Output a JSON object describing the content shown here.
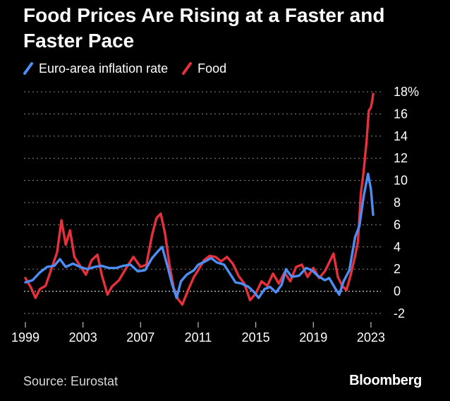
{
  "header": {
    "title": "Food Prices Are Rising at a Faster and Faster Pace"
  },
  "legend": {
    "items": [
      {
        "label": "Euro-area inflation rate",
        "color": "#4d8ef5"
      },
      {
        "label": "Food",
        "color": "#e8303a"
      }
    ]
  },
  "footer": {
    "source": "Source: Eurostat",
    "brand": "Bloomberg"
  },
  "chart_data": {
    "type": "line",
    "title": "Food Prices Are Rising at a Faster and Faster Pace",
    "xlabel": "",
    "ylabel": "",
    "xlim": [
      1998.9,
      2023.2
    ],
    "ylim": [
      -2,
      18
    ],
    "x_ticks": [
      1999,
      2003,
      2007,
      2011,
      2015,
      2019,
      2023
    ],
    "x_tick_labels": [
      "1999",
      "2003",
      "2007",
      "2011",
      "2015",
      "2019",
      "2023"
    ],
    "y_ticks": [
      -2,
      0,
      2,
      4,
      6,
      8,
      10,
      12,
      14,
      16,
      18
    ],
    "y_tick_labels": [
      "-2",
      "0",
      "2",
      "4",
      "6",
      "8",
      "10",
      "12",
      "14",
      "16",
      "18%"
    ],
    "grid": "horizontal dotted",
    "legend_position": "top-left",
    "series": [
      {
        "name": "Euro-area inflation rate",
        "color": "#4d8ef5",
        "x": [
          1999.0,
          1999.5,
          2000.0,
          2000.5,
          2001.0,
          2001.4,
          2001.8,
          2002.3,
          2002.8,
          2003.3,
          2003.8,
          2004.3,
          2004.8,
          2005.3,
          2005.8,
          2006.3,
          2006.8,
          2007.3,
          2007.8,
          2008.2,
          2008.5,
          2008.9,
          2009.2,
          2009.5,
          2009.8,
          2010.2,
          2010.7,
          2011.0,
          2011.5,
          2011.9,
          2012.3,
          2012.8,
          2013.2,
          2013.6,
          2014.0,
          2014.5,
          2014.9,
          2015.2,
          2015.6,
          2016.0,
          2016.4,
          2016.8,
          2017.1,
          2017.5,
          2018.0,
          2018.5,
          2018.9,
          2019.3,
          2019.8,
          2020.1,
          2020.5,
          2020.8,
          2021.1,
          2021.5,
          2021.9,
          2022.2,
          2022.5,
          2022.8,
          2023.0,
          2023.15
        ],
        "values": [
          0.8,
          1.0,
          1.7,
          2.2,
          2.3,
          2.9,
          2.2,
          2.5,
          2.2,
          2.0,
          2.2,
          2.3,
          2.1,
          2.1,
          2.3,
          2.4,
          1.8,
          1.9,
          3.0,
          3.6,
          4.0,
          2.1,
          0.6,
          -0.6,
          0.9,
          1.5,
          1.9,
          2.4,
          2.7,
          3.0,
          2.6,
          2.4,
          1.6,
          0.8,
          0.7,
          0.4,
          -0.1,
          -0.6,
          0.2,
          0.4,
          -0.1,
          0.6,
          2.0,
          1.3,
          1.4,
          2.1,
          1.9,
          1.4,
          1.0,
          1.2,
          0.3,
          -0.3,
          0.9,
          1.9,
          4.9,
          5.9,
          8.6,
          10.6,
          9.2,
          6.9
        ]
      },
      {
        "name": "Food",
        "color": "#e8303a",
        "x": [
          1999.0,
          1999.4,
          1999.7,
          2000.0,
          2000.4,
          2000.8,
          2001.2,
          2001.5,
          2001.8,
          2002.1,
          2002.4,
          2002.8,
          2003.2,
          2003.6,
          2004.0,
          2004.3,
          2004.7,
          2005.0,
          2005.5,
          2006.0,
          2006.5,
          2007.0,
          2007.4,
          2007.8,
          2008.1,
          2008.4,
          2008.7,
          2009.0,
          2009.3,
          2009.6,
          2009.9,
          2010.3,
          2010.7,
          2011.0,
          2011.4,
          2011.8,
          2012.2,
          2012.6,
          2013.0,
          2013.4,
          2013.8,
          2014.2,
          2014.6,
          2015.0,
          2015.4,
          2015.8,
          2016.2,
          2016.6,
          2017.0,
          2017.4,
          2017.8,
          2018.2,
          2018.6,
          2019.0,
          2019.4,
          2019.8,
          2020.1,
          2020.4,
          2020.7,
          2021.0,
          2021.3,
          2021.6,
          2021.9,
          2022.1,
          2022.3,
          2022.5,
          2022.7,
          2022.85,
          2023.0,
          2023.1,
          2023.15
        ],
        "values": [
          1.2,
          0.3,
          -0.6,
          0.2,
          0.5,
          2.0,
          3.5,
          6.4,
          4.2,
          5.5,
          3.1,
          2.3,
          1.5,
          2.8,
          3.3,
          1.5,
          -0.3,
          0.4,
          1.0,
          2.1,
          3.1,
          2.2,
          2.4,
          5.1,
          6.6,
          7.0,
          5.2,
          2.4,
          0.3,
          -0.7,
          -1.2,
          0.1,
          1.3,
          1.9,
          2.8,
          3.2,
          3.1,
          2.7,
          3.1,
          2.5,
          1.4,
          0.7,
          -0.8,
          -0.2,
          0.9,
          0.5,
          1.6,
          0.7,
          1.7,
          0.9,
          2.2,
          2.4,
          1.3,
          2.1,
          1.2,
          1.8,
          2.6,
          3.4,
          1.3,
          0.5,
          0.1,
          1.5,
          3.2,
          4.5,
          8.8,
          10.9,
          13.6,
          16.3,
          16.6,
          17.3,
          17.8
        ]
      }
    ]
  }
}
